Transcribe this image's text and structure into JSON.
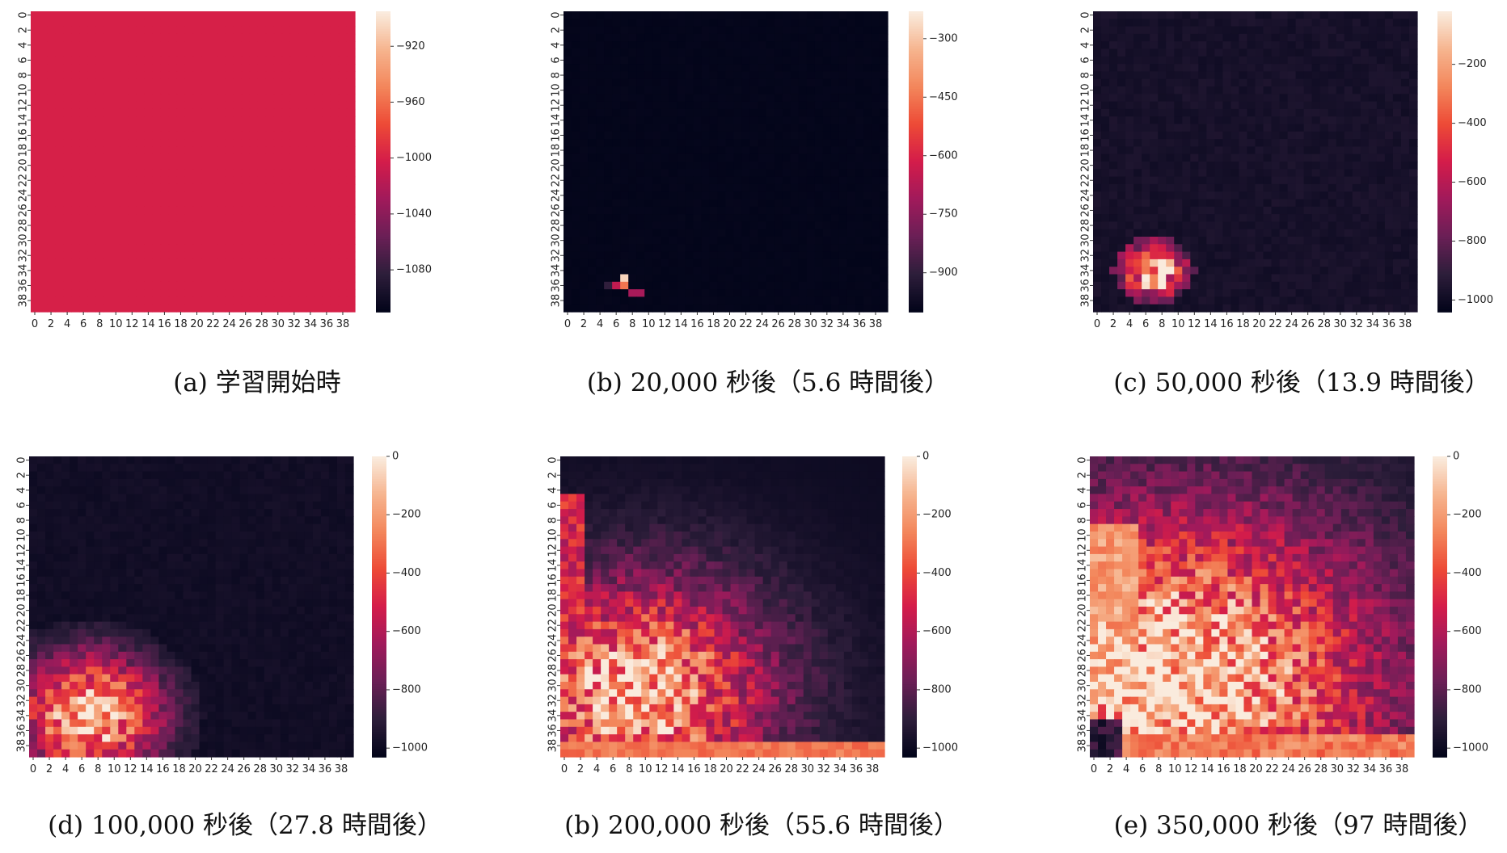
{
  "figure": {
    "colormap": "rocket",
    "colormap_stops": [
      "#03051a",
      "#2e1e3b",
      "#6b1f56",
      "#a11a5b",
      "#d41c4a",
      "#ed4a36",
      "#f3865b",
      "#f6b48e",
      "#faebdd"
    ],
    "grid_size": 40
  },
  "chart_data": [
    {
      "type": "heatmap",
      "caption": "(a) 学習開始時",
      "x_ticks": [
        "0",
        "2",
        "4",
        "6",
        "8",
        "10",
        "12",
        "14",
        "16",
        "18",
        "20",
        "22",
        "24",
        "26",
        "28",
        "30",
        "32",
        "34",
        "36",
        "38"
      ],
      "y_ticks": [
        "0",
        "2",
        "4",
        "6",
        "8",
        "10",
        "12",
        "14",
        "16",
        "18",
        "20",
        "22",
        "24",
        "26",
        "28",
        "30",
        "32",
        "34",
        "36",
        "38"
      ],
      "colorbar": {
        "vmin": -1110,
        "vmax": -895,
        "ticks": [
          "-920",
          "-960",
          "-1000",
          "-1040",
          "-1080"
        ]
      },
      "description_values": {
        "uniform_value": -1000
      }
    },
    {
      "type": "heatmap",
      "caption": "(b) 20,000 秒後（5.6 時間後）",
      "x_ticks": [
        "0",
        "2",
        "4",
        "6",
        "8",
        "10",
        "12",
        "14",
        "16",
        "18",
        "20",
        "22",
        "24",
        "26",
        "28",
        "30",
        "32",
        "34",
        "36",
        "38"
      ],
      "y_ticks": [
        "0",
        "2",
        "4",
        "6",
        "8",
        "10",
        "12",
        "14",
        "16",
        "18",
        "20",
        "22",
        "24",
        "26",
        "28",
        "30",
        "32",
        "34",
        "36",
        "38"
      ],
      "colorbar": {
        "vmin": -1000,
        "vmax": -230,
        "ticks": [
          "-300",
          "-450",
          "-600",
          "-750",
          "-900"
        ]
      },
      "hot_cells": [
        [
          7,
          35,
          -270
        ],
        [
          6,
          36,
          -650
        ],
        [
          7,
          36,
          -450
        ],
        [
          5,
          36,
          -900
        ],
        [
          8,
          37,
          -700
        ],
        [
          9,
          37,
          -700
        ]
      ]
    },
    {
      "type": "heatmap",
      "caption": "(c) 50,000 秒後（13.9 時間後）",
      "x_ticks": [
        "0",
        "2",
        "4",
        "6",
        "8",
        "10",
        "12",
        "14",
        "16",
        "18",
        "20",
        "22",
        "24",
        "26",
        "28",
        "30",
        "32",
        "34",
        "36",
        "38"
      ],
      "y_ticks": [
        "0",
        "2",
        "4",
        "6",
        "8",
        "10",
        "12",
        "14",
        "16",
        "18",
        "20",
        "22",
        "24",
        "26",
        "28",
        "30",
        "32",
        "34",
        "36",
        "38"
      ],
      "colorbar": {
        "vmin": -1040,
        "vmax": -20,
        "ticks": [
          "-200",
          "-400",
          "-600",
          "-800",
          "-1000"
        ]
      },
      "hot_spot": {
        "x": 7,
        "y": 34,
        "radius": 4
      }
    },
    {
      "type": "heatmap",
      "caption": "(d) 100,000 秒後（27.8 時間後）",
      "x_ticks": [
        "0",
        "2",
        "4",
        "6",
        "8",
        "10",
        "12",
        "14",
        "16",
        "18",
        "20",
        "22",
        "24",
        "26",
        "28",
        "30",
        "32",
        "34",
        "36",
        "38"
      ],
      "y_ticks": [
        "0",
        "2",
        "4",
        "6",
        "8",
        "10",
        "12",
        "14",
        "16",
        "18",
        "20",
        "22",
        "24",
        "26",
        "28",
        "30",
        "32",
        "34",
        "36",
        "38"
      ],
      "colorbar": {
        "vmin": -1030,
        "vmax": 0,
        "ticks": [
          "0",
          "-200",
          "-400",
          "-600",
          "-800",
          "-1000"
        ]
      },
      "hot_spot": {
        "x": 7,
        "y": 34,
        "radius": 8
      }
    },
    {
      "type": "heatmap",
      "caption": "(b) 200,000 秒後（55.6 時間後）",
      "x_ticks": [
        "0",
        "2",
        "4",
        "6",
        "8",
        "10",
        "12",
        "14",
        "16",
        "18",
        "20",
        "22",
        "24",
        "26",
        "28",
        "30",
        "32",
        "34",
        "36",
        "38"
      ],
      "y_ticks": [
        "0",
        "2",
        "4",
        "6",
        "8",
        "10",
        "12",
        "14",
        "16",
        "18",
        "20",
        "22",
        "24",
        "26",
        "28",
        "30",
        "32",
        "34",
        "36",
        "38"
      ],
      "colorbar": {
        "vmin": -1030,
        "vmax": 0,
        "ticks": [
          "0",
          "-200",
          "-400",
          "-600",
          "-800",
          "-1000"
        ]
      },
      "hot_spot": {
        "x": 9,
        "y": 31,
        "radius": 14
      }
    },
    {
      "type": "heatmap",
      "caption": "(e) 350,000 秒後（97 時間後）",
      "x_ticks": [
        "0",
        "2",
        "4",
        "6",
        "8",
        "10",
        "12",
        "14",
        "16",
        "18",
        "20",
        "22",
        "24",
        "26",
        "28",
        "30",
        "32",
        "34",
        "36",
        "38"
      ],
      "y_ticks": [
        "0",
        "2",
        "4",
        "6",
        "8",
        "10",
        "12",
        "14",
        "16",
        "18",
        "20",
        "22",
        "24",
        "26",
        "28",
        "30",
        "32",
        "34",
        "36",
        "38"
      ],
      "colorbar": {
        "vmin": -1030,
        "vmax": 0,
        "ticks": [
          "0",
          "-200",
          "-400",
          "-600",
          "-800",
          "-1000"
        ]
      },
      "hot_spot": {
        "x": 10,
        "y": 30,
        "radius": 22
      }
    }
  ]
}
